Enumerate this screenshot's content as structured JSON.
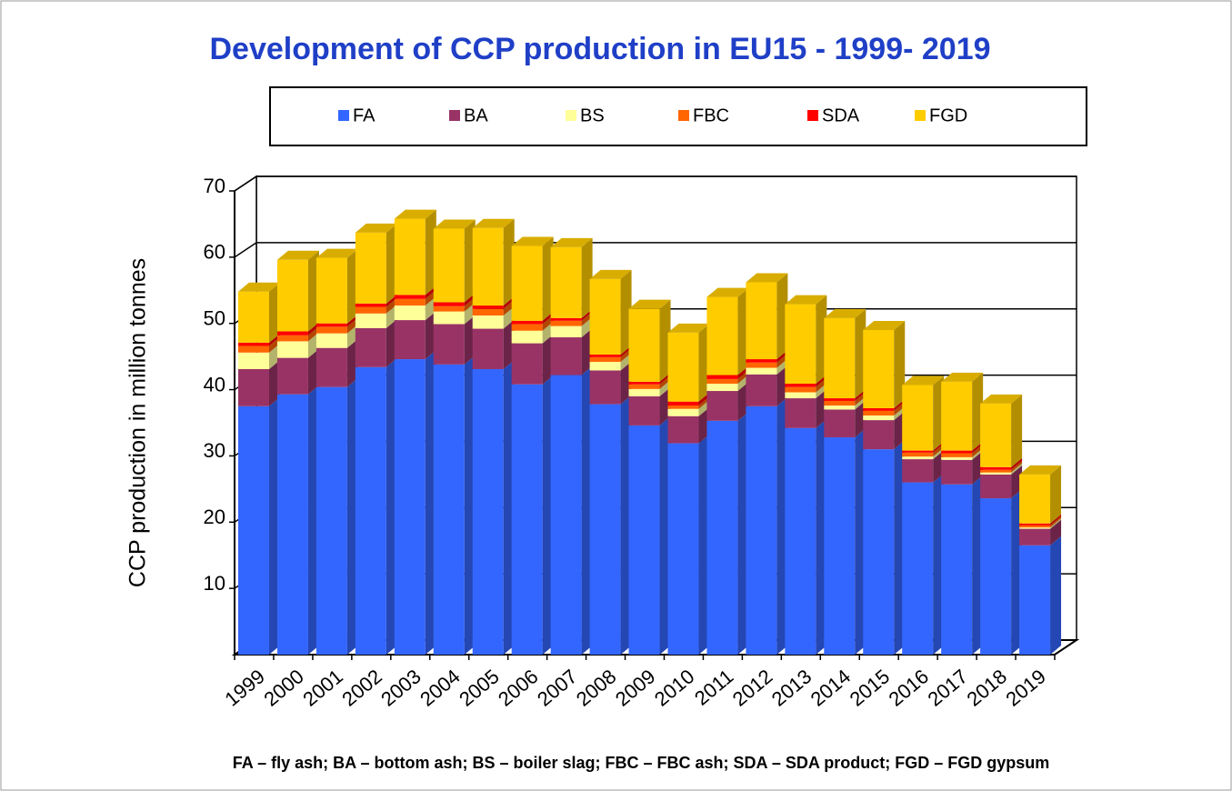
{
  "chart_data": {
    "type": "bar3d_stacked",
    "title": "Development of CCP production in EU15  - 1999- 2019",
    "y_label": "CCP production in million tonnes",
    "footnote": "FA – fly ash; BA – bottom ash; BS – boiler slag; FBC – FBC ash; SDA – SDA product; FGD – FGD gypsum",
    "categories": [
      "1999",
      "2000",
      "2001",
      "2002",
      "2003",
      "2004",
      "2005",
      "2006",
      "2007",
      "2008",
      "2009",
      "2010",
      "2011",
      "2012",
      "2013",
      "2014",
      "2015",
      "2016",
      "2017",
      "2018",
      "2019"
    ],
    "series": [
      {
        "name": "FA",
        "color": "#3366ff",
        "values": [
          37.5,
          39.3,
          40.4,
          43.4,
          44.6,
          43.8,
          43.1,
          40.8,
          42.2,
          37.8,
          34.6,
          31.9,
          35.3,
          37.5,
          34.2,
          32.8,
          31.0,
          26.0,
          25.7,
          23.6,
          16.5
        ]
      },
      {
        "name": "BA",
        "color": "#993366",
        "values": [
          5.6,
          5.5,
          5.9,
          5.9,
          5.9,
          6.1,
          6.1,
          6.2,
          5.7,
          5.1,
          4.4,
          4.1,
          4.5,
          4.8,
          4.5,
          4.2,
          4.4,
          3.5,
          3.7,
          3.6,
          2.5
        ]
      },
      {
        "name": "BS",
        "color": "#ffff99",
        "values": [
          2.5,
          2.5,
          2.2,
          2.2,
          2.2,
          1.9,
          2.0,
          1.9,
          1.7,
          1.3,
          1.1,
          1.1,
          1.1,
          1.0,
          0.9,
          0.6,
          0.7,
          0.4,
          0.4,
          0.3,
          0.2
        ]
      },
      {
        "name": "FBC",
        "color": "#ff6600",
        "values": [
          1.0,
          0.9,
          1.0,
          1.0,
          1.0,
          0.8,
          1.0,
          1.0,
          0.8,
          0.7,
          0.7,
          0.5,
          0.7,
          0.8,
          0.8,
          0.7,
          0.7,
          0.6,
          0.6,
          0.4,
          0.3
        ]
      },
      {
        "name": "SDA",
        "color": "#ff0000",
        "values": [
          0.5,
          0.6,
          0.5,
          0.5,
          0.6,
          0.6,
          0.5,
          0.5,
          0.4,
          0.4,
          0.4,
          0.6,
          0.6,
          0.5,
          0.5,
          0.4,
          0.4,
          0.3,
          0.4,
          0.4,
          0.3
        ]
      },
      {
        "name": "FGD",
        "color": "#ffcc00",
        "values": [
          7.7,
          10.8,
          9.9,
          10.7,
          11.5,
          11.1,
          11.7,
          11.3,
          10.7,
          11.4,
          11.0,
          10.4,
          11.8,
          11.6,
          12.0,
          12.1,
          11.8,
          9.9,
          10.4,
          9.6,
          7.4
        ]
      }
    ],
    "ylim": [
      0,
      70
    ],
    "yticks": [
      10,
      20,
      30,
      40,
      50,
      60,
      70
    ],
    "grid": true
  }
}
